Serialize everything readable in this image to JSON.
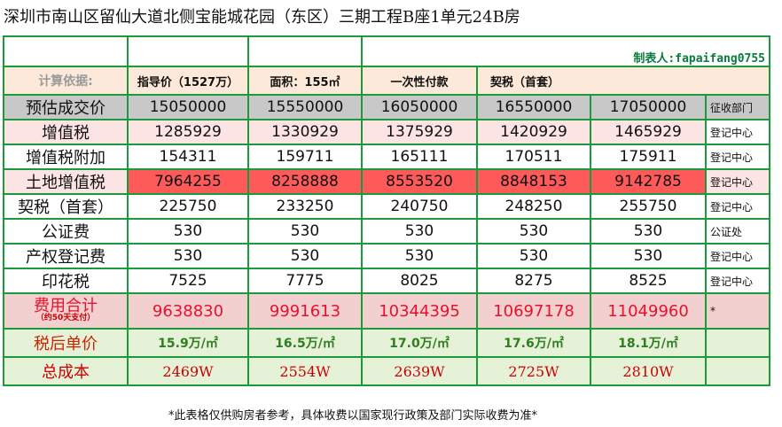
{
  "title": "深圳市南山区留仙大道北侧宝能城花园（东区）三期工程B座1单元24B房",
  "maker": "制表人:fapaifang0755",
  "basis": {
    "label": "计算依据:",
    "items": [
      "指导价（1527万）",
      "面积：155㎡",
      "一次性付款",
      "契税（首套）"
    ]
  },
  "rows": [
    {
      "label": "预估成交价",
      "values": [
        "15050000",
        "15550000",
        "16050000",
        "16550000",
        "17050000"
      ],
      "dept": "征收部门"
    },
    {
      "label": "增值税",
      "values": [
        "1285929",
        "1330929",
        "1375929",
        "1420929",
        "1465929"
      ],
      "dept": "登记中心"
    },
    {
      "label": "增值税附加",
      "values": [
        "154311",
        "159711",
        "165111",
        "170511",
        "175911"
      ],
      "dept": "登记中心"
    },
    {
      "label": "土地增值税",
      "values": [
        "7964255",
        "8258888",
        "8553520",
        "8848153",
        "9142785"
      ],
      "dept": "登记中心"
    },
    {
      "label": "契税（首套）",
      "values": [
        "225750",
        "233250",
        "240750",
        "248250",
        "255750"
      ],
      "dept": "登记中心"
    },
    {
      "label": "公证费",
      "values": [
        "530",
        "530",
        "530",
        "530",
        "530"
      ],
      "dept": "公证处"
    },
    {
      "label": "产权登记费",
      "values": [
        "530",
        "530",
        "530",
        "530",
        "530"
      ],
      "dept": "登记中心"
    },
    {
      "label": "印花税",
      "values": [
        "7525",
        "7775",
        "8025",
        "8275",
        "8525"
      ],
      "dept": "登记中心"
    }
  ],
  "sum": {
    "label": "费用合计",
    "sublabel": "（约50天支付）",
    "values": [
      "9638830",
      "9991613",
      "10344395",
      "10697178",
      "11049960"
    ],
    "dept": "*"
  },
  "unit": {
    "label": "税后单价",
    "values": [
      "15.9万/㎡",
      "16.5万/㎡",
      "17.0万/㎡",
      "17.6万/㎡",
      "18.1万/㎡"
    ]
  },
  "total": {
    "label": "总成本",
    "values": [
      "2469W",
      "2554W",
      "2639W",
      "2725W",
      "2810W"
    ]
  },
  "note": "*此表格仅供购房者参考，具体收费以国家现行政策及部门实际收费为准*",
  "colors": {
    "border": "#1a9a3a",
    "estimate_row": "#c8c8c8",
    "land_tax_cell": "#ff5a5a",
    "sum_text": "#e8102a",
    "unit_text": "#2e7d1e",
    "maker_text": "#0a7a3e"
  }
}
